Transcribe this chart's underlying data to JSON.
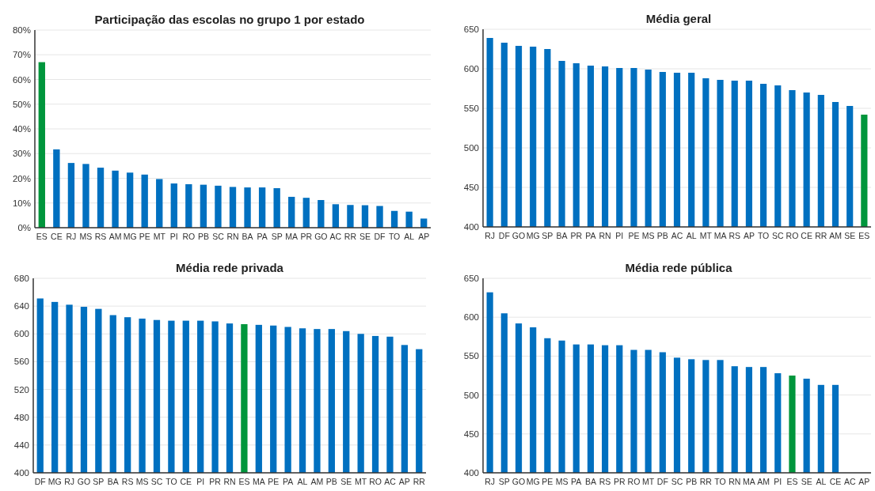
{
  "chart_data": [
    {
      "type": "bar",
      "title": "Participação das escolas no grupo 1 por estado",
      "categories": [
        "ES",
        "CE",
        "RJ",
        "MS",
        "RS",
        "AM",
        "MG",
        "PE",
        "MT",
        "PI",
        "RO",
        "PB",
        "SC",
        "RN",
        "BA",
        "PA",
        "SP",
        "MA",
        "PR",
        "GO",
        "AC",
        "RR",
        "SE",
        "DF",
        "TO",
        "AL",
        "AP"
      ],
      "values": [
        67,
        31.7,
        26.2,
        25.8,
        24.3,
        23.1,
        22.3,
        21.5,
        19.7,
        17.9,
        17.6,
        17.4,
        17,
        16.5,
        16.3,
        16.3,
        16,
        12.5,
        12.1,
        11.2,
        9.5,
        9.2,
        9.1,
        8.8,
        6.8,
        6.5,
        3.7
      ],
      "colors": [
        "#00963c",
        "#0070c0",
        "#0070c0",
        "#0070c0",
        "#0070c0",
        "#0070c0",
        "#0070c0",
        "#0070c0",
        "#0070c0",
        "#0070c0",
        "#0070c0",
        "#0070c0",
        "#0070c0",
        "#0070c0",
        "#0070c0",
        "#0070c0",
        "#0070c0",
        "#0070c0",
        "#0070c0",
        "#0070c0",
        "#0070c0",
        "#0070c0",
        "#0070c0",
        "#0070c0",
        "#0070c0",
        "#0070c0",
        "#0070c0"
      ],
      "ylim": [
        0,
        80
      ],
      "yticks": [
        {
          "value": 0,
          "label": "0%"
        },
        {
          "value": 10,
          "label": "10%"
        },
        {
          "value": 20,
          "label": "20%"
        },
        {
          "value": 30,
          "label": "30%"
        },
        {
          "value": 40,
          "label": "40%"
        },
        {
          "value": 50,
          "label": "50%"
        },
        {
          "value": 60,
          "label": "60%"
        },
        {
          "value": 70,
          "label": "70%"
        },
        {
          "value": 80,
          "label": "80%"
        }
      ],
      "grid": "y"
    },
    {
      "type": "bar",
      "title": "Média geral",
      "categories": [
        "RJ",
        "DF",
        "GO",
        "MG",
        "SP",
        "BA",
        "PR",
        "PA",
        "RN",
        "PI",
        "PE",
        "MS",
        "PB",
        "AC",
        "AL",
        "MT",
        "MA",
        "RS",
        "AP",
        "TO",
        "SC",
        "RO",
        "CE",
        "RR",
        "AM",
        "SE",
        "ES"
      ],
      "values": [
        639,
        633,
        629,
        628,
        625,
        610,
        607,
        604,
        603,
        601,
        601,
        599,
        596,
        595,
        595,
        588,
        586,
        585,
        585,
        581,
        579,
        573,
        570,
        567,
        558,
        553,
        542
      ],
      "colors": [
        "#0070c0",
        "#0070c0",
        "#0070c0",
        "#0070c0",
        "#0070c0",
        "#0070c0",
        "#0070c0",
        "#0070c0",
        "#0070c0",
        "#0070c0",
        "#0070c0",
        "#0070c0",
        "#0070c0",
        "#0070c0",
        "#0070c0",
        "#0070c0",
        "#0070c0",
        "#0070c0",
        "#0070c0",
        "#0070c0",
        "#0070c0",
        "#0070c0",
        "#0070c0",
        "#0070c0",
        "#0070c0",
        "#0070c0",
        "#00963c"
      ],
      "ylim": [
        400,
        650
      ],
      "yticks": [
        400,
        450,
        500,
        550,
        600,
        650
      ],
      "grid": "y"
    },
    {
      "type": "bar",
      "title": "Média rede privada",
      "categories": [
        "DF",
        "MG",
        "RJ",
        "GO",
        "SP",
        "BA",
        "RS",
        "MS",
        "SC",
        "TO",
        "CE",
        "PI",
        "PR",
        "RN",
        "ES",
        "MA",
        "PE",
        "PA",
        "AL",
        "AM",
        "PB",
        "SE",
        "MT",
        "RO",
        "AC",
        "AP",
        "RR"
      ],
      "values": [
        651,
        646,
        642,
        639,
        636,
        627,
        624,
        622,
        620,
        619,
        619,
        619,
        618,
        615,
        614,
        613,
        612,
        610,
        608,
        607,
        607,
        604,
        600,
        597,
        596,
        584,
        578
      ],
      "colors": [
        "#0070c0",
        "#0070c0",
        "#0070c0",
        "#0070c0",
        "#0070c0",
        "#0070c0",
        "#0070c0",
        "#0070c0",
        "#0070c0",
        "#0070c0",
        "#0070c0",
        "#0070c0",
        "#0070c0",
        "#0070c0",
        "#00963c",
        "#0070c0",
        "#0070c0",
        "#0070c0",
        "#0070c0",
        "#0070c0",
        "#0070c0",
        "#0070c0",
        "#0070c0",
        "#0070c0",
        "#0070c0",
        "#0070c0",
        "#0070c0"
      ],
      "ylim": [
        400,
        680
      ],
      "yticks": [
        400,
        440,
        480,
        520,
        560,
        600,
        640,
        680
      ],
      "grid": "y"
    },
    {
      "type": "bar",
      "title": "Média rede pública",
      "categories": [
        "RJ",
        "SP",
        "GO",
        "MG",
        "PE",
        "MS",
        "PA",
        "BA",
        "RS",
        "PR",
        "RO",
        "MT",
        "DF",
        "SC",
        "PB",
        "RR",
        "TO",
        "RN",
        "MA",
        "AM",
        "PI",
        "ES",
        "SE",
        "AL",
        "CE",
        "AC",
        "AP"
      ],
      "values": [
        632,
        605,
        592,
        587,
        573,
        570,
        565,
        565,
        564,
        564,
        558,
        558,
        555,
        548,
        546,
        545,
        545,
        537,
        536,
        536,
        528,
        525,
        521,
        513,
        513,
        null,
        null
      ],
      "colors": [
        "#0070c0",
        "#0070c0",
        "#0070c0",
        "#0070c0",
        "#0070c0",
        "#0070c0",
        "#0070c0",
        "#0070c0",
        "#0070c0",
        "#0070c0",
        "#0070c0",
        "#0070c0",
        "#0070c0",
        "#0070c0",
        "#0070c0",
        "#0070c0",
        "#0070c0",
        "#0070c0",
        "#0070c0",
        "#0070c0",
        "#0070c0",
        "#00963c",
        "#0070c0",
        "#0070c0",
        "#0070c0",
        null,
        null
      ],
      "ylim": [
        400,
        650
      ],
      "yticks": [
        400,
        450,
        500,
        550,
        600,
        650
      ],
      "grid": "y"
    }
  ]
}
